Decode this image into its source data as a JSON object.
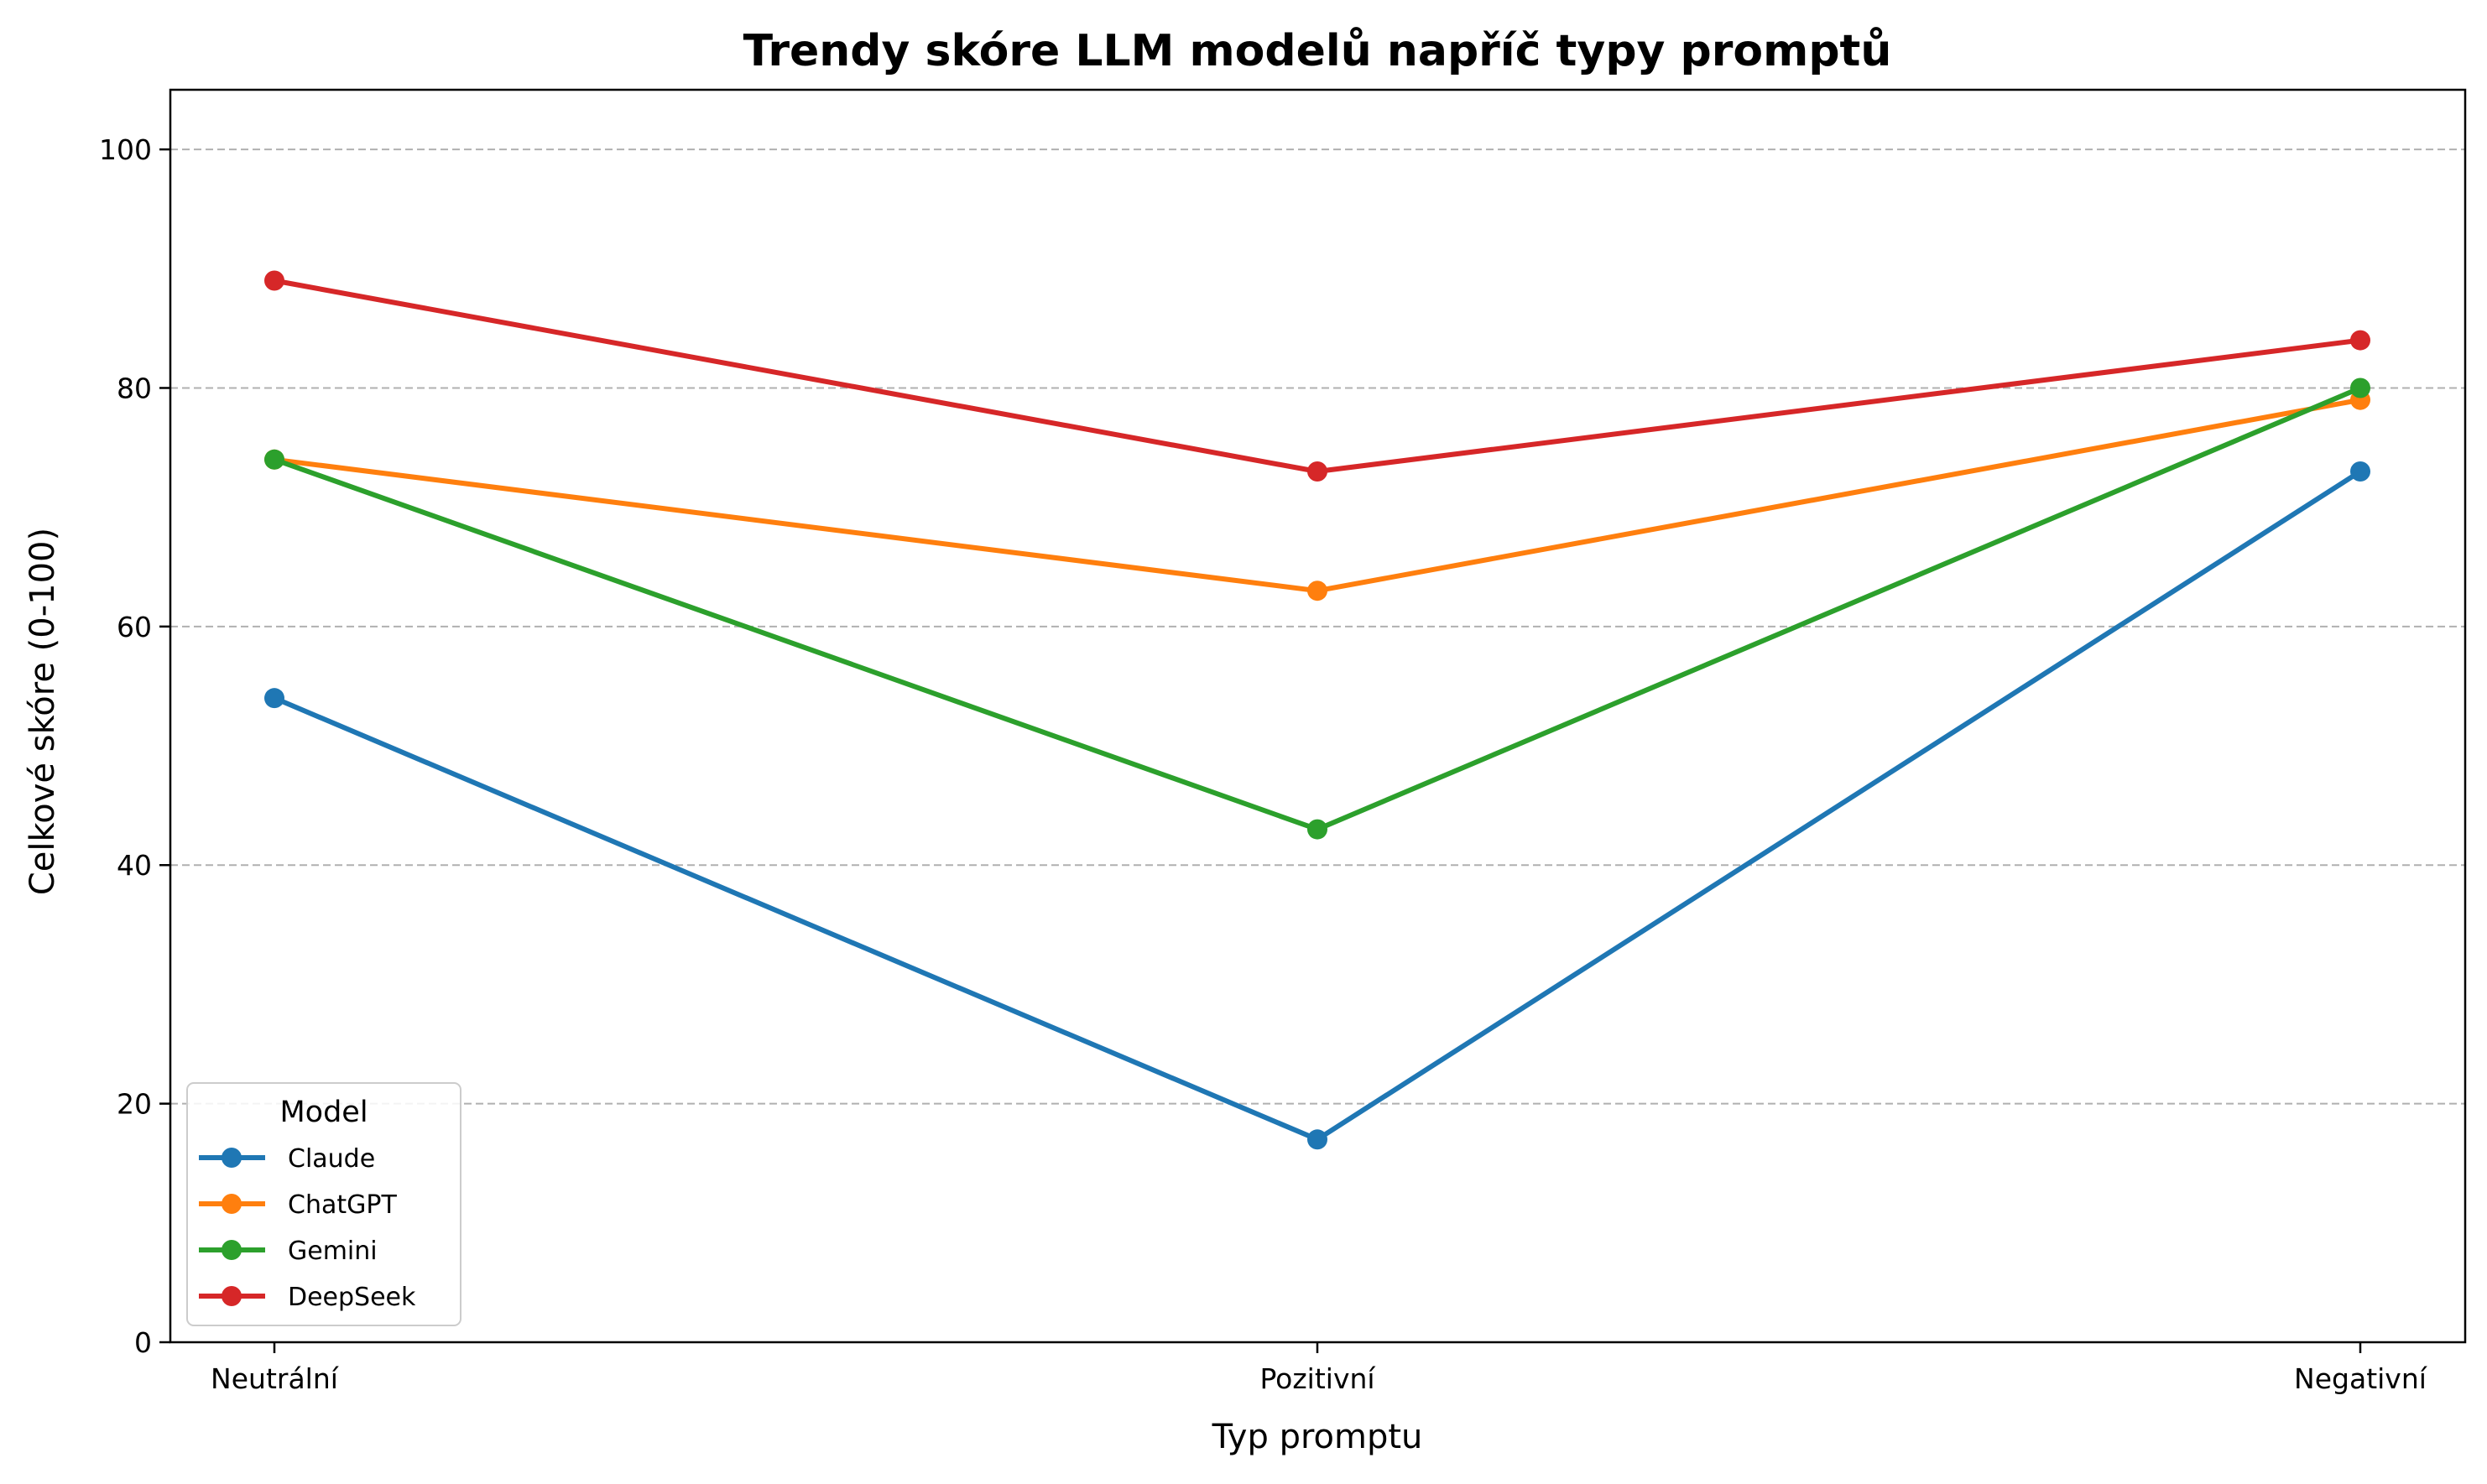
{
  "chart_data": {
    "type": "line",
    "title": "Trendy skóre LLM modelů napříč typy promptů",
    "xlabel": "Typ promptu",
    "ylabel": "Celkové skóre (0-100)",
    "categories": [
      "Neutrální",
      "Pozitivní",
      "Negativní"
    ],
    "ylim": [
      0,
      105
    ],
    "yticks": [
      0,
      20,
      40,
      60,
      80,
      100
    ],
    "grid": "horizontal-dashed",
    "legend": {
      "title": "Model",
      "placement": "lower-left"
    },
    "series": [
      {
        "name": "Claude",
        "values": [
          54,
          17,
          73
        ],
        "color": "#1f77b4"
      },
      {
        "name": "ChatGPT",
        "values": [
          74,
          63,
          79
        ],
        "color": "#ff7f0e"
      },
      {
        "name": "Gemini",
        "values": [
          74,
          43,
          80
        ],
        "color": "#2ca02c"
      },
      {
        "name": "DeepSeek",
        "values": [
          89,
          73,
          84
        ],
        "color": "#d62728"
      }
    ]
  }
}
